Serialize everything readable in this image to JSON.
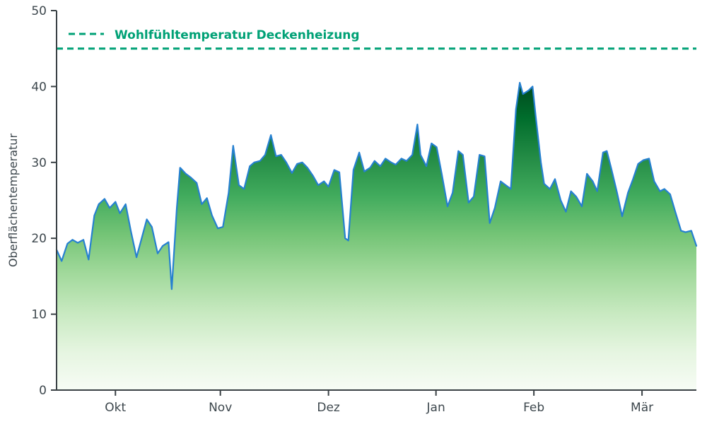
{
  "chart_data": {
    "type": "area",
    "title": "",
    "xlabel": "",
    "ylabel": "Oberflächentemperatur",
    "ylim": [
      0,
      50
    ],
    "yticks": [
      0,
      10,
      20,
      30,
      40,
      50
    ],
    "xticks": [
      {
        "label": "Okt",
        "pos": 0.092
      },
      {
        "label": "Nov",
        "pos": 0.256
      },
      {
        "label": "Dez",
        "pos": 0.425
      },
      {
        "label": "Jan",
        "pos": 0.593
      },
      {
        "label": "Feb",
        "pos": 0.746
      },
      {
        "label": "Mär",
        "pos": 0.915
      }
    ],
    "comfort_line": {
      "value": 45,
      "label": "Wohlfühltemperatur Deckenheizung",
      "color": "#00a176"
    },
    "axis_color": "#3a4145",
    "text_color": "#3d474d",
    "grid": false,
    "legend_position": "upper-left",
    "gradient": {
      "top_value": 41,
      "bottom_value": 0,
      "stops": [
        {
          "o": 0.0,
          "c": "#00441b"
        },
        {
          "o": 0.125,
          "c": "#006d2c"
        },
        {
          "o": 0.25,
          "c": "#238b45"
        },
        {
          "o": 0.375,
          "c": "#41ab5d"
        },
        {
          "o": 0.5,
          "c": "#74c476"
        },
        {
          "o": 0.625,
          "c": "#a1d99b"
        },
        {
          "o": 0.75,
          "c": "#c7e9c0"
        },
        {
          "o": 0.875,
          "c": "#e5f5e0"
        },
        {
          "o": 1.0,
          "c": "#f7fcf5"
        }
      ]
    },
    "series": [
      {
        "name": "Oberflächentemperatur",
        "line_color": "#2680d0",
        "points": [
          [
            0.0,
            18.5
          ],
          [
            0.008,
            17.0
          ],
          [
            0.017,
            19.3
          ],
          [
            0.025,
            19.8
          ],
          [
            0.033,
            19.4
          ],
          [
            0.042,
            19.8
          ],
          [
            0.05,
            17.2
          ],
          [
            0.059,
            23.0
          ],
          [
            0.066,
            24.5
          ],
          [
            0.075,
            25.2
          ],
          [
            0.083,
            24.0
          ],
          [
            0.092,
            24.8
          ],
          [
            0.099,
            23.3
          ],
          [
            0.108,
            24.5
          ],
          [
            0.116,
            21.0
          ],
          [
            0.125,
            17.5
          ],
          [
            0.133,
            20.0
          ],
          [
            0.141,
            22.5
          ],
          [
            0.149,
            21.5
          ],
          [
            0.158,
            18.0
          ],
          [
            0.166,
            19.0
          ],
          [
            0.175,
            19.5
          ],
          [
            0.18,
            13.3
          ],
          [
            0.188,
            24.0
          ],
          [
            0.193,
            29.3
          ],
          [
            0.202,
            28.5
          ],
          [
            0.21,
            28.0
          ],
          [
            0.219,
            27.3
          ],
          [
            0.227,
            24.5
          ],
          [
            0.235,
            25.3
          ],
          [
            0.243,
            23.0
          ],
          [
            0.252,
            21.3
          ],
          [
            0.26,
            21.5
          ],
          [
            0.269,
            26.0
          ],
          [
            0.276,
            32.2
          ],
          [
            0.285,
            27.0
          ],
          [
            0.293,
            26.5
          ],
          [
            0.302,
            29.5
          ],
          [
            0.309,
            30.0
          ],
          [
            0.318,
            30.2
          ],
          [
            0.326,
            31.0
          ],
          [
            0.335,
            33.6
          ],
          [
            0.343,
            30.8
          ],
          [
            0.351,
            31.0
          ],
          [
            0.359,
            30.0
          ],
          [
            0.368,
            28.6
          ],
          [
            0.376,
            29.8
          ],
          [
            0.384,
            30.0
          ],
          [
            0.392,
            29.3
          ],
          [
            0.401,
            28.2
          ],
          [
            0.409,
            27.0
          ],
          [
            0.418,
            27.5
          ],
          [
            0.425,
            26.8
          ],
          [
            0.434,
            29.0
          ],
          [
            0.442,
            28.7
          ],
          [
            0.451,
            20.0
          ],
          [
            0.456,
            19.7
          ],
          [
            0.464,
            29.0
          ],
          [
            0.473,
            31.3
          ],
          [
            0.481,
            28.8
          ],
          [
            0.49,
            29.3
          ],
          [
            0.497,
            30.2
          ],
          [
            0.506,
            29.5
          ],
          [
            0.514,
            30.5
          ],
          [
            0.523,
            30.0
          ],
          [
            0.53,
            29.7
          ],
          [
            0.539,
            30.5
          ],
          [
            0.547,
            30.2
          ],
          [
            0.556,
            31.0
          ],
          [
            0.564,
            35.0
          ],
          [
            0.569,
            31.0
          ],
          [
            0.578,
            29.5
          ],
          [
            0.586,
            32.5
          ],
          [
            0.594,
            32.0
          ],
          [
            0.602,
            28.5
          ],
          [
            0.611,
            24.2
          ],
          [
            0.619,
            26.0
          ],
          [
            0.628,
            31.5
          ],
          [
            0.635,
            31.0
          ],
          [
            0.644,
            24.7
          ],
          [
            0.652,
            25.5
          ],
          [
            0.661,
            31.0
          ],
          [
            0.669,
            30.8
          ],
          [
            0.677,
            22.0
          ],
          [
            0.685,
            24.0
          ],
          [
            0.694,
            27.5
          ],
          [
            0.702,
            27.0
          ],
          [
            0.71,
            26.5
          ],
          [
            0.718,
            37.0
          ],
          [
            0.724,
            40.5
          ],
          [
            0.729,
            39.0
          ],
          [
            0.738,
            39.5
          ],
          [
            0.744,
            40.0
          ],
          [
            0.749,
            36.0
          ],
          [
            0.757,
            30.0
          ],
          [
            0.762,
            27.2
          ],
          [
            0.771,
            26.5
          ],
          [
            0.779,
            27.8
          ],
          [
            0.788,
            25.0
          ],
          [
            0.796,
            23.5
          ],
          [
            0.804,
            26.2
          ],
          [
            0.812,
            25.5
          ],
          [
            0.821,
            24.2
          ],
          [
            0.829,
            28.5
          ],
          [
            0.838,
            27.5
          ],
          [
            0.845,
            26.2
          ],
          [
            0.854,
            31.3
          ],
          [
            0.86,
            31.5
          ],
          [
            0.867,
            29.2
          ],
          [
            0.876,
            26.0
          ],
          [
            0.884,
            22.9
          ],
          [
            0.893,
            26.0
          ],
          [
            0.901,
            27.8
          ],
          [
            0.909,
            29.8
          ],
          [
            0.917,
            30.3
          ],
          [
            0.926,
            30.5
          ],
          [
            0.934,
            27.5
          ],
          [
            0.943,
            26.2
          ],
          [
            0.95,
            26.5
          ],
          [
            0.959,
            25.8
          ],
          [
            0.967,
            23.5
          ],
          [
            0.976,
            21.0
          ],
          [
            0.983,
            20.8
          ],
          [
            0.992,
            21.0
          ],
          [
            1.0,
            19.0
          ]
        ]
      }
    ]
  }
}
